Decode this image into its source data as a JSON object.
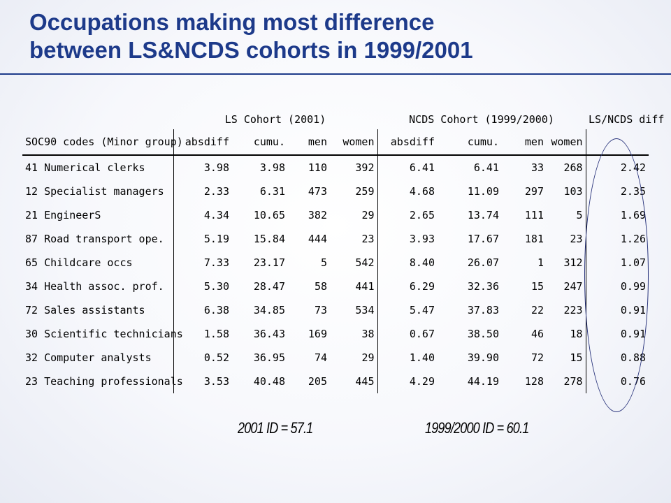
{
  "slide": {
    "title_line1": "Occupations making most difference",
    "title_line2": "between LS&NCDS cohorts in 1999/2001"
  },
  "table": {
    "groups": {
      "ls": "LS Cohort (2001)",
      "ncds": "NCDS Cohort (1999/2000)",
      "diff": "LS/NCDS diff"
    },
    "headers": [
      "SOC90 codes (Minor group)",
      "absdiff",
      "cumu.",
      "men",
      "women",
      "absdiff",
      "cumu.",
      "men",
      "women",
      ""
    ],
    "rows": [
      [
        "41 Numerical clerks",
        "3.98",
        "3.98",
        "110",
        "392",
        "6.41",
        "6.41",
        "33",
        "268",
        "2.42"
      ],
      [
        "12 Specialist managers",
        "2.33",
        "6.31",
        "473",
        "259",
        "4.68",
        "11.09",
        "297",
        "103",
        "2.35"
      ],
      [
        "21 EngineerS",
        "4.34",
        "10.65",
        "382",
        "29",
        "2.65",
        "13.74",
        "111",
        "5",
        "1.69"
      ],
      [
        "87 Road transport ope.",
        "5.19",
        "15.84",
        "444",
        "23",
        "3.93",
        "17.67",
        "181",
        "23",
        "1.26"
      ],
      [
        "65 Childcare occs",
        "7.33",
        "23.17",
        "5",
        "542",
        "8.40",
        "26.07",
        "1",
        "312",
        "1.07"
      ],
      [
        "34 Health assoc. prof.",
        "5.30",
        "28.47",
        "58",
        "441",
        "6.29",
        "32.36",
        "15",
        "247",
        "0.99"
      ],
      [
        "72 Sales assistants",
        "6.38",
        "34.85",
        "73",
        "534",
        "5.47",
        "37.83",
        "22",
        "223",
        "0.91"
      ],
      [
        "30 Scientific technicians",
        "1.58",
        "36.43",
        "169",
        "38",
        "0.67",
        "38.50",
        "46",
        "18",
        "0.91"
      ],
      [
        "32 Computer analysts",
        "0.52",
        "36.95",
        "74",
        "29",
        "1.40",
        "39.90",
        "72",
        "15",
        "0.88"
      ],
      [
        "23 Teaching professionals",
        "3.53",
        "40.48",
        "205",
        "445",
        "4.29",
        "44.19",
        "128",
        "278",
        "0.76"
      ]
    ]
  },
  "notes": {
    "ls_id": "2001 ID = 57.1",
    "ncds_id": "1999/2000 ID = 60.1"
  },
  "colors": {
    "title": "#1d3a8a",
    "highlight_ellipse": "#27327a"
  }
}
